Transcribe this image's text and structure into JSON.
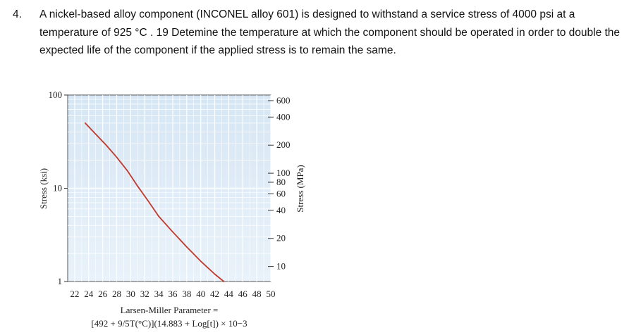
{
  "question": {
    "number": "4.",
    "text": "A nickel-based alloy component (INCONEL alloy 601) is designed to withstand a service stress of 4000 psi at a temperature of 925 °C .  19 Detemine the temperature at which the component should be operated in order to double the expected life of the component if the applied stress is to remain the same."
  },
  "chart_data": {
    "type": "line",
    "xlabel_line1": "Larsen-Miller Parameter =",
    "xlabel_line2": "[492 + 9/5T(°C)](14.883 + Log[t]) × 10−3",
    "ylabel_left": "Stress (ksi)",
    "ylabel_right": "Stress (MPa)",
    "x_ticks": [
      "22",
      "24",
      "26",
      "28",
      "30",
      "32",
      "34",
      "36",
      "38",
      "40",
      "42",
      "44",
      "46",
      "48",
      "50"
    ],
    "xlim": [
      21,
      50
    ],
    "left_ticks": [
      {
        "label": "100",
        "value": 100
      },
      {
        "label": "10",
        "value": 10
      },
      {
        "label": "1",
        "value": 1
      }
    ],
    "right_ticks": [
      {
        "label": "600",
        "ksi": 87.0
      },
      {
        "label": "400",
        "ksi": 58.0
      },
      {
        "label": "200",
        "ksi": 29.0
      },
      {
        "label": "100",
        "ksi": 14.5
      },
      {
        "label": "80",
        "ksi": 11.6
      },
      {
        "label": "60",
        "ksi": 8.7
      },
      {
        "label": "40",
        "ksi": 5.8
      },
      {
        "label": "20",
        "ksi": 2.9
      },
      {
        "label": "10",
        "ksi": 1.45
      }
    ],
    "ylim_ksi": [
      1,
      100
    ],
    "y_scale": "log",
    "grid": true,
    "series": [
      {
        "color": "#c0392b",
        "points": [
          [
            23.5,
            50
          ],
          [
            25,
            38
          ],
          [
            26.5,
            29
          ],
          [
            28,
            21.5
          ],
          [
            29.5,
            15.5
          ],
          [
            31,
            10.5
          ],
          [
            32.5,
            7.3
          ],
          [
            34,
            5.0
          ],
          [
            36,
            3.4
          ],
          [
            38,
            2.35
          ],
          [
            40,
            1.65
          ],
          [
            42,
            1.2
          ],
          [
            43.3,
            1.0
          ]
        ]
      }
    ]
  }
}
